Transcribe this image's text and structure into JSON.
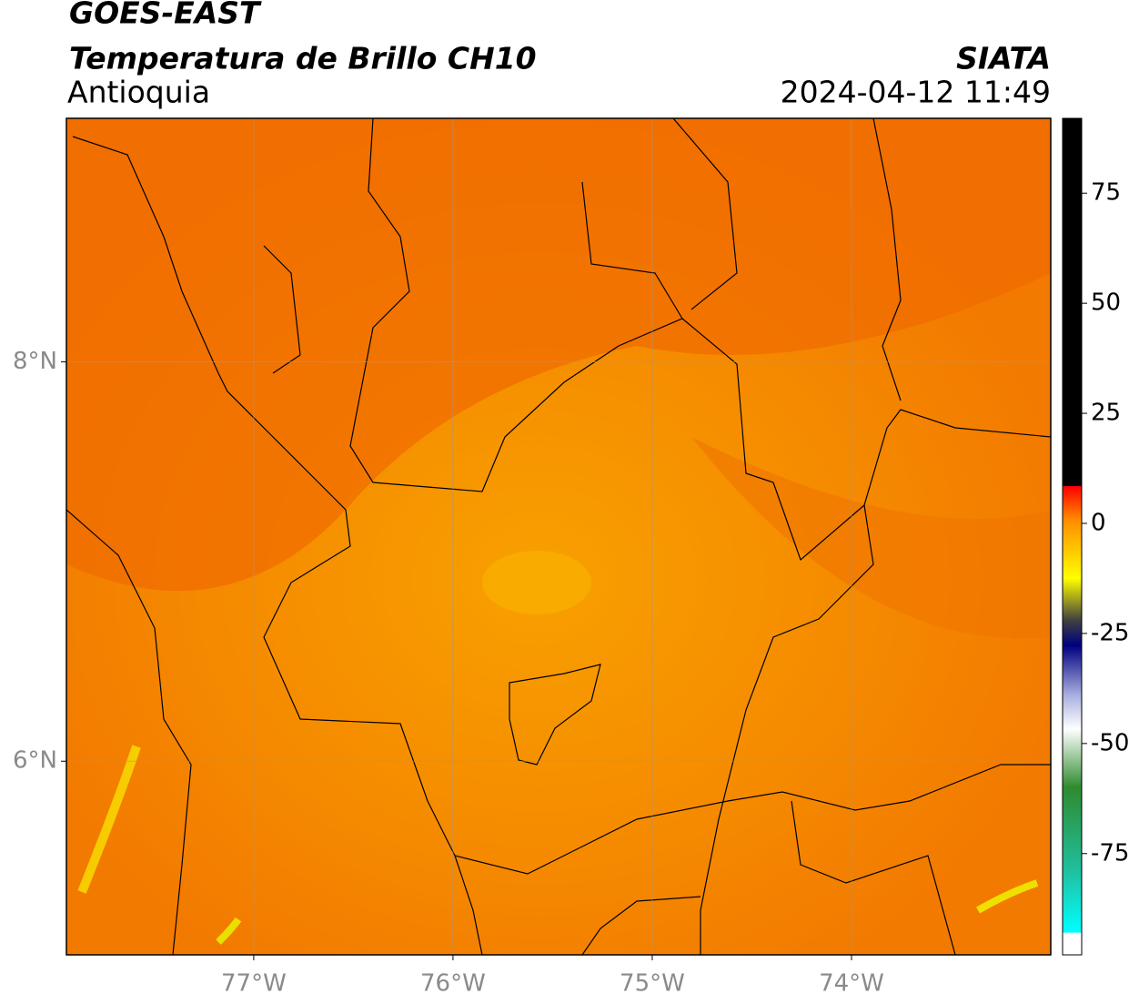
{
  "header": {
    "title": "GOES-EAST",
    "subtitle": "Temperatura de Brillo CH10",
    "region": "Antioquia",
    "source": "SIATA",
    "datetime": "2024-04-12 11:49"
  },
  "map": {
    "xlim": [
      -77.94,
      -73.0
    ],
    "ylim": [
      5.03,
      9.22
    ],
    "xticks": [
      {
        "value": -77,
        "label": "77°W"
      },
      {
        "value": -76,
        "label": "76°W"
      },
      {
        "value": -75,
        "label": "75°W"
      },
      {
        "value": -74,
        "label": "74°W"
      }
    ],
    "yticks": [
      {
        "value": 8,
        "label": "8°N"
      },
      {
        "value": 6,
        "label": "6°N"
      }
    ],
    "grid": true
  },
  "colorbar": {
    "clim": [
      -98,
      92
    ],
    "ticks": [
      75,
      50,
      25,
      0,
      -25,
      -50,
      -75
    ]
  }
}
